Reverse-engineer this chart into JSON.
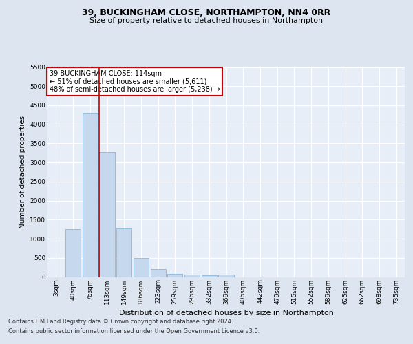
{
  "title1": "39, BUCKINGHAM CLOSE, NORTHAMPTON, NN4 0RR",
  "title2": "Size of property relative to detached houses in Northampton",
  "xlabel": "Distribution of detached houses by size in Northampton",
  "ylabel": "Number of detached properties",
  "categories": [
    "3sqm",
    "40sqm",
    "76sqm",
    "113sqm",
    "149sqm",
    "186sqm",
    "223sqm",
    "259sqm",
    "296sqm",
    "332sqm",
    "369sqm",
    "406sqm",
    "442sqm",
    "479sqm",
    "515sqm",
    "552sqm",
    "589sqm",
    "625sqm",
    "662sqm",
    "698sqm",
    "735sqm"
  ],
  "bar_values": [
    0,
    1250,
    4300,
    3280,
    1280,
    490,
    210,
    90,
    55,
    45,
    70,
    0,
    0,
    0,
    0,
    0,
    0,
    0,
    0,
    0,
    0
  ],
  "bar_color": "#c5d8ee",
  "bar_edge_color": "#7aafd4",
  "vline_index": 3,
  "vline_color": "#cc0000",
  "ylim": [
    0,
    5500
  ],
  "yticks": [
    0,
    500,
    1000,
    1500,
    2000,
    2500,
    3000,
    3500,
    4000,
    4500,
    5000,
    5500
  ],
  "annotation_title": "39 BUCKINGHAM CLOSE: 114sqm",
  "annotation_line1": "← 51% of detached houses are smaller (5,611)",
  "annotation_line2": "48% of semi-detached houses are larger (5,238) →",
  "annotation_box_color": "#ffffff",
  "annotation_box_edge": "#cc0000",
  "footer1": "Contains HM Land Registry data © Crown copyright and database right 2024.",
  "footer2": "Contains public sector information licensed under the Open Government Licence v3.0.",
  "bg_color": "#dde6f0",
  "plot_bg_color": "#e8eef7",
  "grid_color": "#ffffff",
  "title1_fontsize": 9,
  "title2_fontsize": 8,
  "xlabel_fontsize": 8,
  "ylabel_fontsize": 7.5,
  "tick_fontsize": 6.5,
  "annotation_fontsize": 7,
  "footer_fontsize": 6
}
